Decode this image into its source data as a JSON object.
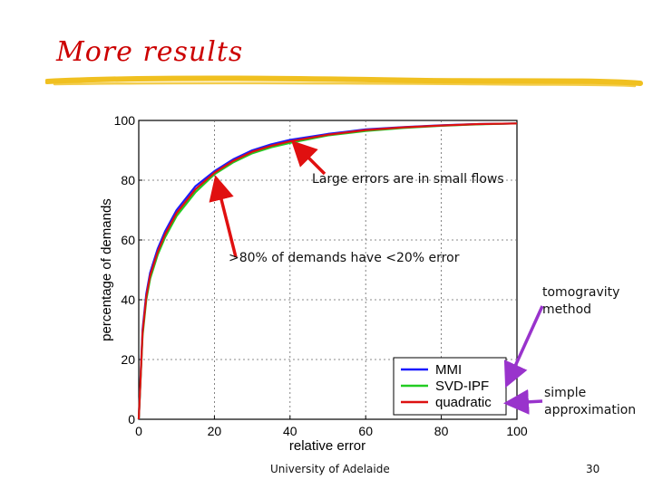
{
  "slide": {
    "title": "More results",
    "footer_left": "University of Adelaide",
    "page_number": "30",
    "title_color": "#cc0000",
    "underline_color": "#f0c020"
  },
  "annotations": {
    "large_errors": "Large errors are in small flows",
    "eighty_percent": ">80% of demands have <20% error",
    "tomogravity": "tomogravity method",
    "simple": "simple approximation",
    "red_arrow_color": "#e01010",
    "purple_arrow_color": "#9933cc"
  },
  "chart_data": {
    "type": "line",
    "xlabel": "relative error",
    "ylabel": "percentage of demands",
    "xlim": [
      0,
      100
    ],
    "ylim": [
      0,
      100
    ],
    "xticks": [
      0,
      20,
      40,
      60,
      80,
      100
    ],
    "yticks": [
      0,
      20,
      40,
      60,
      80,
      100
    ],
    "grid": true,
    "legend_position": "lower-right",
    "series": [
      {
        "name": "MMI",
        "color": "#1a1aff",
        "x": [
          0,
          1,
          2,
          3,
          5,
          7,
          10,
          15,
          20,
          25,
          30,
          35,
          40,
          50,
          60,
          70,
          80,
          90,
          100
        ],
        "y": [
          0,
          30,
          42,
          49,
          57,
          63,
          70,
          78,
          83,
          87,
          90,
          92,
          93.5,
          95.5,
          97,
          97.8,
          98.4,
          98.8,
          99
        ]
      },
      {
        "name": "SVD-IPF",
        "color": "#22cc22",
        "x": [
          0,
          1,
          2,
          3,
          5,
          7,
          10,
          15,
          20,
          25,
          30,
          35,
          40,
          50,
          60,
          70,
          80,
          90,
          100
        ],
        "y": [
          0,
          28,
          40,
          47,
          55,
          61,
          68,
          76,
          82,
          86,
          89,
          91,
          92.5,
          95,
          96.5,
          97.5,
          98.2,
          98.7,
          99
        ]
      },
      {
        "name": "quadratic",
        "color": "#dd1111",
        "x": [
          0,
          1,
          2,
          3,
          5,
          7,
          10,
          15,
          20,
          25,
          30,
          35,
          40,
          50,
          60,
          70,
          80,
          90,
          100
        ],
        "y": [
          0,
          29,
          41,
          48,
          56,
          62,
          69,
          77,
          82.5,
          86.5,
          89.5,
          91.5,
          93,
          95.2,
          96.8,
          97.7,
          98.3,
          98.8,
          99
        ]
      }
    ]
  }
}
